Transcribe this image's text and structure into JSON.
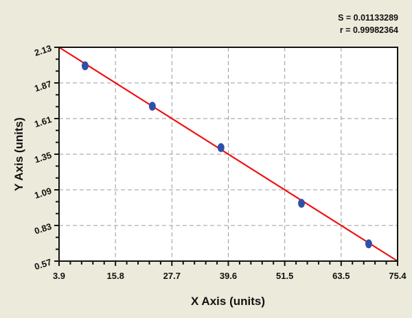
{
  "chart_data": {
    "type": "scatter",
    "xlabel": "X Axis (units)",
    "ylabel": "Y Axis (units)",
    "xlim": [
      3.9,
      75.4
    ],
    "ylim": [
      0.57,
      2.13
    ],
    "xticks": [
      "3.9",
      "15.8",
      "27.7",
      "39.6",
      "51.5",
      "63.5",
      "75.4"
    ],
    "yticks": [
      "0.57",
      "0.83",
      "1.09",
      "1.35",
      "1.61",
      "1.87",
      "2.13"
    ],
    "grid": true,
    "points": [
      {
        "x": 9.4,
        "y": 1.995
      },
      {
        "x": 23.6,
        "y": 1.7
      },
      {
        "x": 38.1,
        "y": 1.398
      },
      {
        "x": 55.1,
        "y": 0.992
      },
      {
        "x": 69.3,
        "y": 0.696
      }
    ],
    "fit_line": {
      "x": [
        3.9,
        75.4
      ],
      "y": [
        2.13,
        0.57
      ]
    },
    "annotations": [
      "S = 0.01133289",
      "r = 0.99982364"
    ],
    "colors": {
      "points": "#3050a8",
      "line": "#ee1111",
      "background": "#eceada",
      "plot": "#ffffff"
    }
  }
}
